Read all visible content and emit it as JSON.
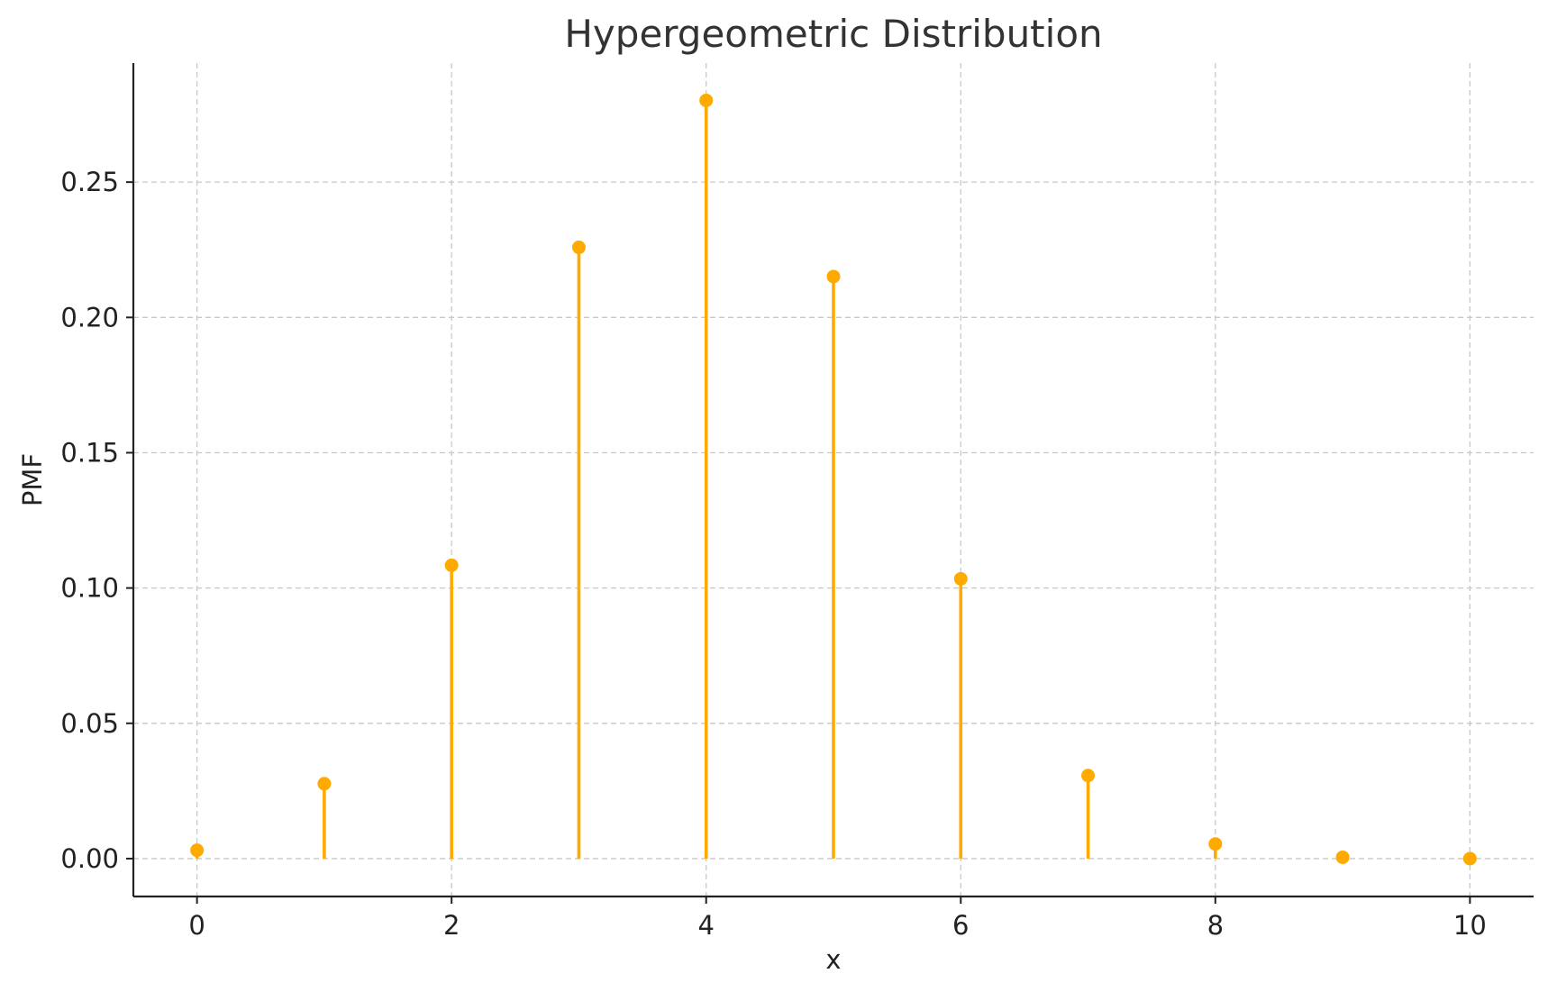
{
  "chart_data": {
    "type": "stem",
    "title": "Hypergeometric Distribution",
    "xlabel": "x",
    "ylabel": "PMF",
    "x": [
      0,
      1,
      2,
      3,
      4,
      5,
      6,
      7,
      8,
      9,
      10
    ],
    "values": [
      0.0031,
      0.0277,
      0.1084,
      0.2259,
      0.2802,
      0.2151,
      0.1034,
      0.0307,
      0.0054,
      0.0005,
      0.0
    ],
    "xlim": [
      -0.5,
      10.5
    ],
    "ylim": [
      -0.014,
      0.294
    ],
    "xticks": [
      0,
      2,
      4,
      6,
      8,
      10
    ],
    "xtick_labels": [
      "0",
      "2",
      "4",
      "6",
      "8",
      "10"
    ],
    "yticks": [
      0.0,
      0.05,
      0.1,
      0.15,
      0.2,
      0.25
    ],
    "ytick_labels": [
      "0.00",
      "0.05",
      "0.10",
      "0.15",
      "0.20",
      "0.25"
    ],
    "grid": true,
    "color": "#FFAA00"
  }
}
